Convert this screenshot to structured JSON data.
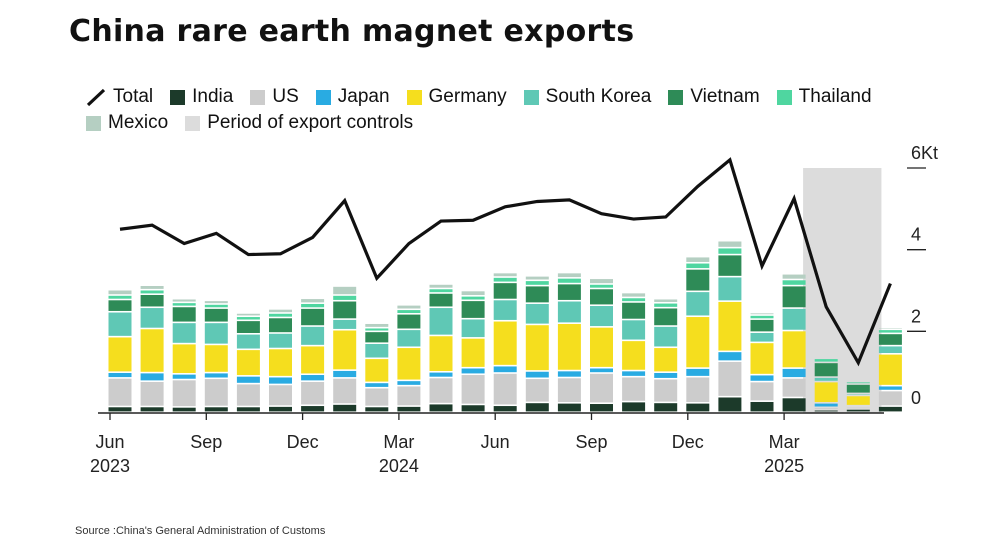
{
  "title": "China rare earth magnet exports",
  "source": "Source :China's General Administration of Customs",
  "colors": {
    "total": "#111111",
    "India": "#1c3a2a",
    "US": "#cccccc",
    "Japan": "#29abe2",
    "Germany": "#f5de1e",
    "South Korea": "#5fc8b5",
    "Vietnam": "#2e8b57",
    "Thailand": "#4fd6a0",
    "Mexico": "#b5cfc2",
    "controls": "#dcdcdc"
  },
  "legend": [
    {
      "key": "total",
      "label": "Total"
    },
    {
      "key": "India",
      "label": "India"
    },
    {
      "key": "US",
      "label": "US"
    },
    {
      "key": "Japan",
      "label": "Japan"
    },
    {
      "key": "Germany",
      "label": "Germany"
    },
    {
      "key": "South Korea",
      "label": "South Korea"
    },
    {
      "key": "Vietnam",
      "label": "Vietnam"
    },
    {
      "key": "Thailand",
      "label": "Thailand"
    },
    {
      "key": "Mexico",
      "label": "Mexico"
    },
    {
      "key": "controls",
      "label": "Period of export controls"
    }
  ],
  "chart_data": {
    "type": "bar",
    "stacked": true,
    "title": "China rare earth magnet exports",
    "unit": "Kt",
    "ylim": [
      0,
      6
    ],
    "yticks": [
      {
        "value": 0,
        "label": "0"
      },
      {
        "value": 2,
        "label": "2"
      },
      {
        "value": 4,
        "label": "4"
      },
      {
        "value": 6,
        "label": "6Kt"
      }
    ],
    "x_labels": [
      {
        "index": 0,
        "month": "Jun",
        "year": "2023"
      },
      {
        "index": 3,
        "month": "Sep",
        "year": ""
      },
      {
        "index": 6,
        "month": "Dec",
        "year": ""
      },
      {
        "index": 9,
        "month": "Mar",
        "year": "2024"
      },
      {
        "index": 12,
        "month": "Jun",
        "year": ""
      },
      {
        "index": 15,
        "month": "Sep",
        "year": ""
      },
      {
        "index": 18,
        "month": "Dec",
        "year": ""
      },
      {
        "index": 21,
        "month": "Mar",
        "year": "2025"
      }
    ],
    "categories": [
      "Jun 2023",
      "Jul 2023",
      "Aug 2023",
      "Sep 2023",
      "Oct 2023",
      "Nov 2023",
      "Dec 2023",
      "Jan 2024",
      "Feb 2024",
      "Mar 2024",
      "Apr 2024",
      "May 2024",
      "Jun 2024",
      "Jul 2024",
      "Aug 2024",
      "Sep 2024",
      "Oct 2024",
      "Nov 2024",
      "Dec 2024",
      "Jan 2025",
      "Feb 2025",
      "Mar 2025",
      "Apr 2025",
      "May 2025",
      "Jun 2025"
    ],
    "series": [
      {
        "name": "India",
        "values": [
          0.14,
          0.14,
          0.13,
          0.14,
          0.14,
          0.15,
          0.17,
          0.2,
          0.14,
          0.15,
          0.21,
          0.19,
          0.17,
          0.24,
          0.23,
          0.22,
          0.26,
          0.24,
          0.23,
          0.38,
          0.27,
          0.36,
          0.06,
          0.08,
          0.15
        ]
      },
      {
        "name": "US",
        "values": [
          0.7,
          0.62,
          0.67,
          0.69,
          0.56,
          0.53,
          0.59,
          0.64,
          0.46,
          0.5,
          0.64,
          0.74,
          0.79,
          0.59,
          0.62,
          0.74,
          0.61,
          0.58,
          0.64,
          0.87,
          0.48,
          0.48,
          0.06,
          0.05,
          0.38
        ]
      },
      {
        "name": "Japan",
        "values": [
          0.14,
          0.21,
          0.14,
          0.14,
          0.19,
          0.19,
          0.17,
          0.19,
          0.13,
          0.13,
          0.14,
          0.16,
          0.18,
          0.18,
          0.17,
          0.13,
          0.15,
          0.16,
          0.21,
          0.24,
          0.17,
          0.24,
          0.11,
          0.03,
          0.12
        ]
      },
      {
        "name": "Germany",
        "values": [
          0.87,
          1.08,
          0.74,
          0.69,
          0.65,
          0.69,
          0.7,
          0.99,
          0.59,
          0.81,
          0.89,
          0.73,
          1.1,
          1.14,
          1.16,
          1.0,
          0.74,
          0.61,
          1.27,
          1.23,
          0.79,
          0.92,
          0.52,
          0.25,
          0.78
        ]
      },
      {
        "name": "South Korea",
        "values": [
          0.61,
          0.52,
          0.52,
          0.54,
          0.38,
          0.38,
          0.48,
          0.26,
          0.37,
          0.44,
          0.69,
          0.47,
          0.52,
          0.52,
          0.55,
          0.53,
          0.51,
          0.52,
          0.61,
          0.6,
          0.25,
          0.55,
          0.11,
          0.05,
          0.2
        ]
      },
      {
        "name": "Vietnam",
        "values": [
          0.3,
          0.32,
          0.39,
          0.35,
          0.33,
          0.38,
          0.44,
          0.45,
          0.29,
          0.38,
          0.35,
          0.45,
          0.42,
          0.43,
          0.42,
          0.41,
          0.43,
          0.45,
          0.55,
          0.54,
          0.32,
          0.55,
          0.36,
          0.23,
          0.3
        ]
      },
      {
        "name": "Thailand",
        "values": [
          0.11,
          0.11,
          0.1,
          0.1,
          0.1,
          0.11,
          0.12,
          0.14,
          0.09,
          0.11,
          0.11,
          0.11,
          0.13,
          0.13,
          0.14,
          0.11,
          0.11,
          0.12,
          0.15,
          0.17,
          0.1,
          0.15,
          0.1,
          0.06,
          0.1
        ]
      },
      {
        "name": "Mexico",
        "values": [
          0.13,
          0.11,
          0.09,
          0.09,
          0.08,
          0.1,
          0.12,
          0.22,
          0.11,
          0.11,
          0.11,
          0.13,
          0.11,
          0.11,
          0.13,
          0.14,
          0.12,
          0.1,
          0.15,
          0.17,
          0.06,
          0.14,
          0.02,
          0.02,
          0.05
        ]
      }
    ],
    "total": [
      4.5,
      4.6,
      4.15,
      4.4,
      3.88,
      3.9,
      4.3,
      5.2,
      3.3,
      4.15,
      4.7,
      4.72,
      5.05,
      5.18,
      5.22,
      4.88,
      4.75,
      4.8,
      5.55,
      6.2,
      3.6,
      5.25,
      2.6,
      1.23,
      3.17
    ],
    "export_controls_period": [
      "Apr 2025",
      "May 2025"
    ]
  }
}
